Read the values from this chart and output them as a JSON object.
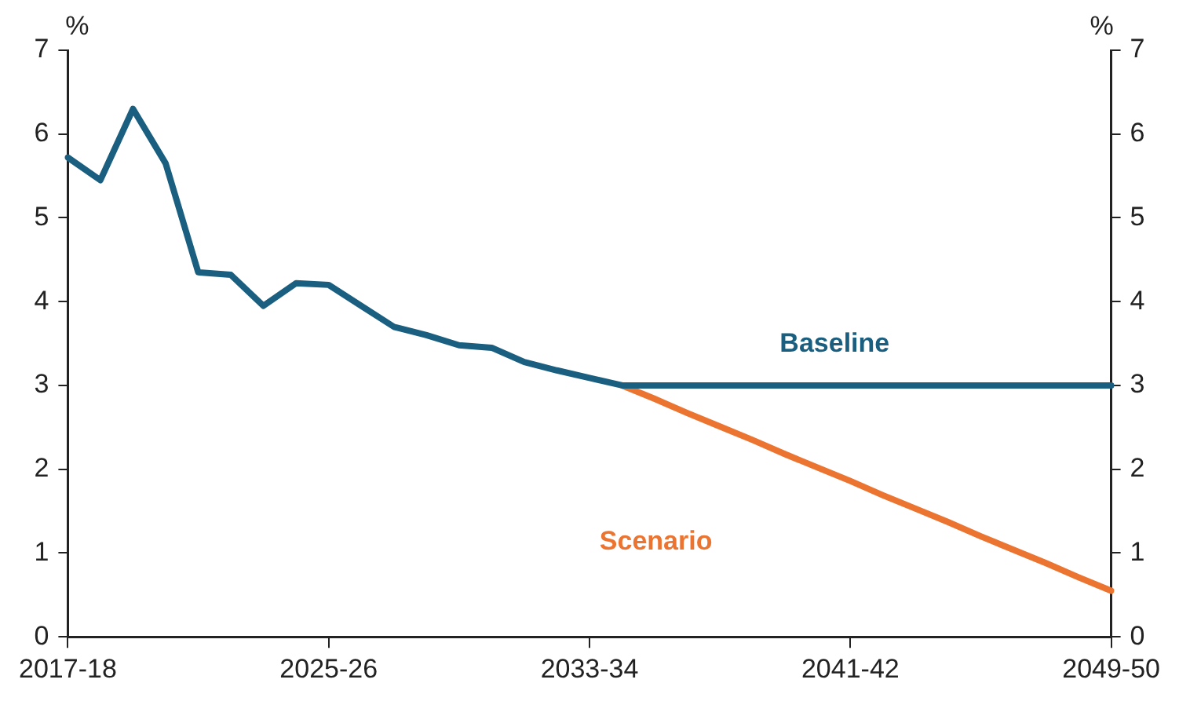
{
  "chart_data": {
    "type": "line",
    "ylabel": "%",
    "y2label": "%",
    "categories": [
      "2017-18",
      null,
      null,
      null,
      null,
      null,
      null,
      null,
      "2025-26",
      null,
      null,
      null,
      null,
      null,
      null,
      null,
      "2033-34",
      null,
      null,
      null,
      null,
      null,
      null,
      null,
      "2041-42",
      null,
      null,
      null,
      null,
      null,
      null,
      null,
      "2049-50"
    ],
    "series": [
      {
        "name": "Baseline",
        "color": "#1b5f80",
        "values": [
          5.72,
          5.45,
          6.3,
          5.65,
          4.35,
          4.32,
          3.95,
          4.22,
          4.2,
          3.95,
          3.7,
          3.6,
          3.48,
          3.45,
          3.28,
          3.18,
          3.09,
          3.0,
          3.0,
          3.0,
          3.0,
          3.0,
          3.0,
          3.0,
          3.0,
          3.0,
          3.0,
          3.0,
          3.0,
          3.0,
          3.0,
          3.0,
          3.0
        ]
      },
      {
        "name": "Scenario",
        "color": "#ec7431",
        "values": [
          null,
          null,
          null,
          null,
          null,
          null,
          null,
          null,
          null,
          null,
          null,
          null,
          null,
          null,
          null,
          null,
          null,
          3.0,
          2.84,
          2.67,
          2.51,
          2.35,
          2.18,
          2.02,
          1.86,
          1.69,
          1.53,
          1.37,
          1.2,
          1.04,
          0.88,
          0.71,
          0.55
        ]
      }
    ],
    "ylim": [
      0,
      7
    ],
    "yticks": [
      0,
      1,
      2,
      3,
      4,
      5,
      6,
      7
    ],
    "y2lim": [
      0,
      7
    ],
    "y2ticks": [
      0,
      1,
      2,
      3,
      4,
      5,
      6,
      7
    ],
    "grid": false,
    "legend": false,
    "marker": "none",
    "line_style": "solid"
  }
}
